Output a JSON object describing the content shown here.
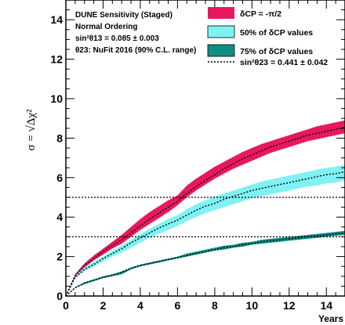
{
  "chart_data": {
    "type": "area",
    "xlabel": "Years",
    "ylabel": "σ = √Δχ²",
    "xlim": [
      0,
      15
    ],
    "ylim": [
      0,
      15
    ],
    "x_ticks": [
      "0",
      "2",
      "4",
      "6",
      "8",
      "10",
      "12",
      "14"
    ],
    "y_ticks": [
      "0",
      "2",
      "4",
      "6",
      "8",
      "10",
      "12",
      "14"
    ],
    "grid": false,
    "legend_position": "top-right",
    "info_text": [
      "DUNE Sensitivity (Staged)",
      "Normal Ordering",
      "sin²θ13 = 0.085 ± 0.003",
      "θ23: NuFit 2016 (90% C.L. range)"
    ],
    "reference_lines": [
      {
        "y": 5,
        "style": "dotted"
      },
      {
        "y": 3,
        "style": "dotted"
      }
    ],
    "x": [
      0,
      0.5,
      1,
      1.5,
      2,
      2.5,
      3,
      3.5,
      4,
      4.5,
      5,
      5.5,
      6,
      6.5,
      7,
      7.5,
      8,
      8.5,
      9,
      9.5,
      10,
      10.5,
      11,
      11.5,
      12,
      12.5,
      13,
      13.5,
      14,
      14.5,
      15
    ],
    "series": [
      {
        "name": "δCP = -π/2",
        "kind": "band",
        "color": "#e8185e",
        "lower": [
          0,
          1.0,
          1.45,
          1.8,
          2.1,
          2.4,
          2.65,
          3.0,
          3.35,
          3.65,
          3.95,
          4.25,
          4.6,
          5.0,
          5.35,
          5.65,
          5.95,
          6.2,
          6.45,
          6.65,
          6.85,
          7.05,
          7.25,
          7.4,
          7.55,
          7.7,
          7.85,
          7.95,
          8.05,
          8.15,
          8.25
        ],
        "upper": [
          0,
          1.1,
          1.65,
          2.05,
          2.4,
          2.75,
          3.1,
          3.5,
          3.9,
          4.25,
          4.55,
          4.85,
          5.1,
          5.6,
          5.95,
          6.25,
          6.55,
          6.8,
          7.05,
          7.3,
          7.5,
          7.7,
          7.85,
          8.0,
          8.15,
          8.3,
          8.45,
          8.6,
          8.7,
          8.8,
          8.9
        ]
      },
      {
        "name": "50% of δCP values",
        "kind": "band",
        "color": "#7ff3f3",
        "lower": [
          0,
          0.9,
          1.25,
          1.5,
          1.75,
          2.0,
          2.2,
          2.45,
          2.7,
          2.95,
          3.15,
          3.35,
          3.55,
          3.8,
          4.0,
          4.2,
          4.35,
          4.5,
          4.65,
          4.8,
          4.95,
          5.05,
          5.15,
          5.25,
          5.35,
          5.45,
          5.55,
          5.6,
          5.7,
          5.75,
          5.85
        ],
        "upper": [
          0,
          1.0,
          1.45,
          1.75,
          2.0,
          2.3,
          2.55,
          2.85,
          3.15,
          3.4,
          3.65,
          3.9,
          4.1,
          4.4,
          4.65,
          4.85,
          5.05,
          5.2,
          5.35,
          5.5,
          5.65,
          5.8,
          5.9,
          6.0,
          6.1,
          6.2,
          6.3,
          6.4,
          6.5,
          6.55,
          6.65
        ]
      },
      {
        "name": "75% of δCP values",
        "kind": "band",
        "color": "#0e8e86",
        "lower": [
          0,
          0.4,
          0.6,
          0.75,
          0.9,
          1.0,
          1.1,
          1.35,
          1.5,
          1.6,
          1.7,
          1.8,
          1.9,
          2.0,
          2.1,
          2.2,
          2.3,
          2.35,
          2.45,
          2.5,
          2.6,
          2.65,
          2.7,
          2.75,
          2.8,
          2.85,
          2.9,
          2.95,
          3.0,
          3.05,
          3.1
        ],
        "upper": [
          0,
          0.45,
          0.7,
          0.85,
          1.0,
          1.1,
          1.25,
          1.45,
          1.6,
          1.7,
          1.8,
          1.9,
          2.0,
          2.15,
          2.25,
          2.35,
          2.45,
          2.55,
          2.6,
          2.7,
          2.75,
          2.85,
          2.9,
          2.95,
          3.0,
          3.05,
          3.1,
          3.15,
          3.2,
          3.25,
          3.3
        ]
      },
      {
        "name": "sin²θ23 = 0.441 ± 0.042",
        "kind": "central-dotted",
        "color": "#000000",
        "curves": [
          [
            0,
            1.05,
            1.55,
            1.9,
            2.25,
            2.55,
            2.85,
            3.2,
            3.55,
            3.9,
            4.2,
            4.5,
            4.8,
            5.2,
            5.55,
            5.85,
            6.15,
            6.45,
            6.7,
            6.95,
            7.15,
            7.35,
            7.55,
            7.7,
            7.85,
            8.0,
            8.15,
            8.25,
            8.35,
            8.45,
            8.55
          ],
          [
            0,
            0.95,
            1.35,
            1.6,
            1.9,
            2.15,
            2.4,
            2.7,
            2.95,
            3.2,
            3.45,
            3.65,
            3.85,
            4.1,
            4.35,
            4.55,
            4.7,
            4.9,
            5.05,
            5.2,
            5.35,
            5.45,
            5.55,
            5.65,
            5.75,
            5.85,
            5.95,
            6.05,
            6.15,
            6.2,
            6.3
          ],
          [
            0,
            0.42,
            0.65,
            0.8,
            0.95,
            1.05,
            1.2,
            1.4,
            1.55,
            1.65,
            1.75,
            1.85,
            1.95,
            2.05,
            2.15,
            2.25,
            2.35,
            2.45,
            2.5,
            2.6,
            2.65,
            2.75,
            2.8,
            2.85,
            2.9,
            2.95,
            3.0,
            3.05,
            3.1,
            3.15,
            3.2
          ]
        ]
      }
    ]
  }
}
